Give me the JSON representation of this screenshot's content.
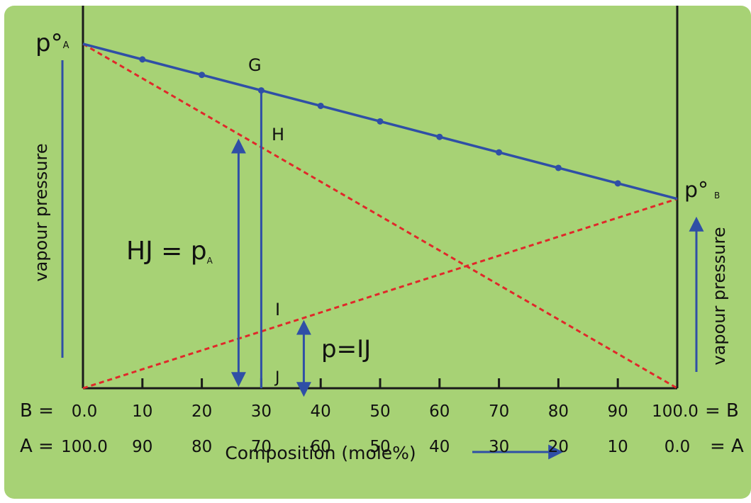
{
  "chart_data": {
    "type": "line",
    "x_axis_label": "Composition (mole%)",
    "y_axis_label_left": "vapour pressure",
    "y_axis_label_right": "vapour pressure",
    "b_row_label": "B =",
    "a_row_label": "A =",
    "b_row_end_label": "= B",
    "a_row_end_label": "= A",
    "b_ticks": [
      "0.0",
      "10",
      "20",
      "30",
      "40",
      "50",
      "60",
      "70",
      "80",
      "90",
      "100.0"
    ],
    "a_ticks": [
      "100.0",
      "90",
      "80",
      "70",
      "60",
      "50",
      "40",
      "30",
      "20",
      "10",
      "0.0"
    ],
    "x_values": [
      0,
      10,
      20,
      30,
      40,
      50,
      60,
      70,
      80,
      90,
      100
    ],
    "pA_pure": 1.0,
    "pB_pure": 0.55,
    "series": [
      {
        "id": "total",
        "color": "#2f4fa6",
        "style": "solid",
        "points": [
          [
            0,
            1.0
          ],
          [
            10,
            0.955
          ],
          [
            20,
            0.91
          ],
          [
            30,
            0.865
          ],
          [
            40,
            0.82
          ],
          [
            50,
            0.775
          ],
          [
            60,
            0.73
          ],
          [
            70,
            0.685
          ],
          [
            80,
            0.64
          ],
          [
            90,
            0.595
          ],
          [
            100,
            0.55
          ]
        ]
      },
      {
        "id": "partial_A",
        "color": "#e0282a",
        "style": "dashed",
        "points": [
          [
            0,
            1.0
          ],
          [
            100,
            0
          ]
        ]
      },
      {
        "id": "partial_B",
        "color": "#e0282a",
        "style": "dashed",
        "points": [
          [
            0,
            0
          ],
          [
            100,
            0.55
          ]
        ]
      }
    ],
    "annotations": {
      "pA_label": "p°",
      "pA_sub": "A",
      "pB_label": "p°",
      "pB_sub": "B",
      "G": "G",
      "H": "H",
      "I": "I",
      "J": "J",
      "HJ_text": "HJ = p",
      "HJ_sub": "A",
      "IJ_text": "p=IJ"
    },
    "construction_x": 30,
    "colors": {
      "background": "#a7d275",
      "total_line": "#2f4fa6",
      "partial_lines": "#e0282a",
      "axes": "#1a1a1a",
      "arrows": "#2f4fa6"
    }
  }
}
